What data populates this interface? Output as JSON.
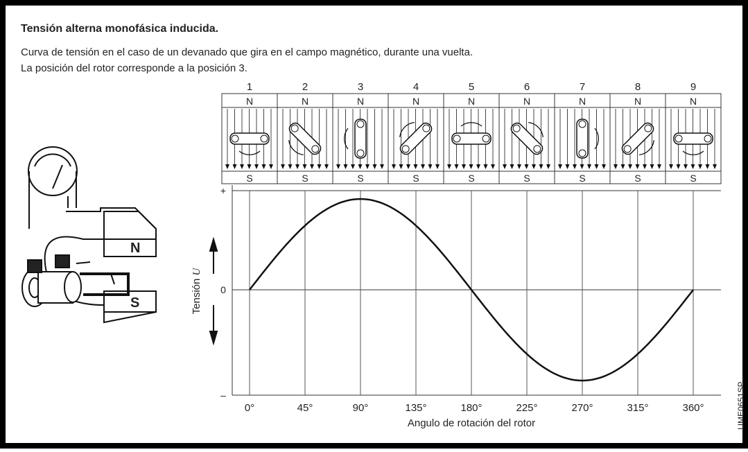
{
  "header": {
    "title": "Tensión alterna monofásica inducida.",
    "description": [
      "Curva de tensión en el caso de un devanado que gira en el campo magnético, durante una vuelta.",
      "La posición del rotor corresponde a la posición 3."
    ]
  },
  "positions": [
    "1",
    "2",
    "3",
    "4",
    "5",
    "6",
    "7",
    "8",
    "9"
  ],
  "pole_north": "N",
  "pole_south": "S",
  "magnet": {
    "north": "N",
    "south": "S"
  },
  "axis": {
    "y_label": "Tensión",
    "y_symbol": "U",
    "plus": "+",
    "zero": "0",
    "minus": "–",
    "x_ticks": [
      "0°",
      "45°",
      "90°",
      "135°",
      "180°",
      "225°",
      "270°",
      "315°",
      "360°"
    ],
    "x_label": "Angulo de rotación del rotor"
  },
  "code": "UME0651SP"
}
